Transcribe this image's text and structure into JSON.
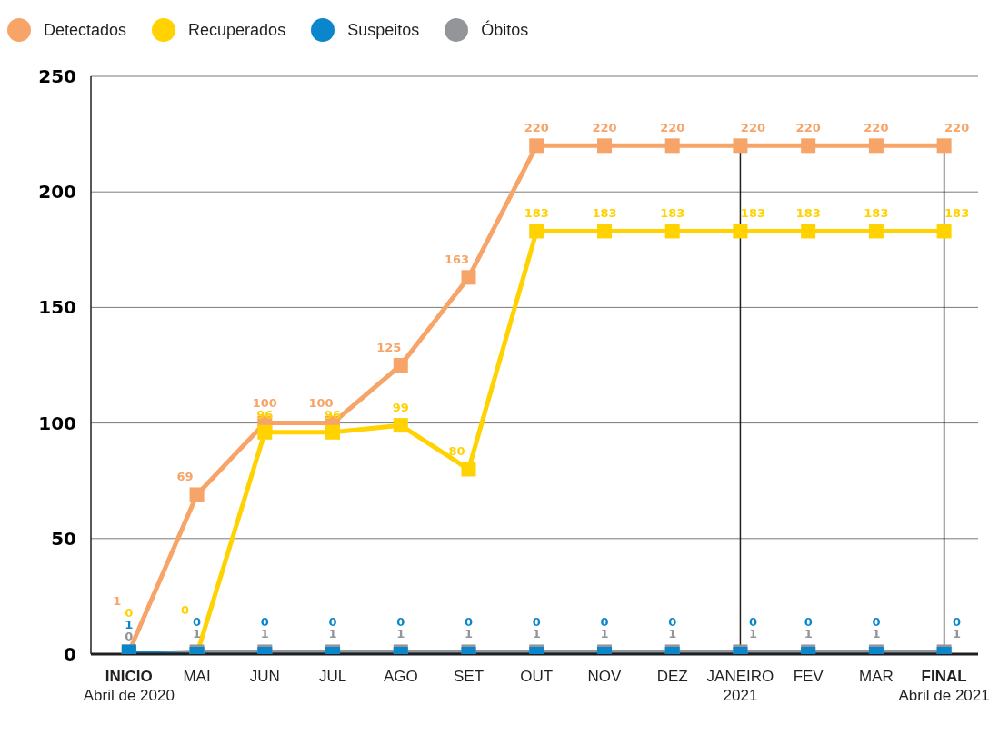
{
  "chart_data": {
    "type": "line",
    "categories": [
      "INICIO\nAbril de 2020",
      "MAI",
      "JUN",
      "JUL",
      "AGO",
      "SET",
      "OUT",
      "NOV",
      "DEZ",
      "JANEIRO\n2021",
      "FEV",
      "MAR",
      "FINAL\nAbril de 2021"
    ],
    "series": [
      {
        "name": "Detectados",
        "color": "#f7a468",
        "values": [
          1,
          69,
          100,
          100,
          125,
          163,
          220,
          220,
          220,
          220,
          220,
          220,
          220
        ]
      },
      {
        "name": "Recuperados",
        "color": "#ffd200",
        "values": [
          0,
          0,
          96,
          96,
          99,
          80,
          183,
          183,
          183,
          183,
          183,
          183,
          183
        ]
      },
      {
        "name": "Suspeitos",
        "color": "#0a86cc",
        "values": [
          1,
          0,
          0,
          0,
          0,
          0,
          0,
          0,
          0,
          0,
          0,
          0,
          0
        ]
      },
      {
        "name": "Óbitos",
        "color": "#939598",
        "values": [
          0,
          1,
          1,
          1,
          1,
          1,
          1,
          1,
          1,
          1,
          1,
          1,
          1
        ]
      }
    ],
    "ylim": [
      0,
      250
    ],
    "yticks": [
      0,
      50,
      100,
      150,
      200,
      250
    ],
    "grid": "y",
    "legend": "top left",
    "marker": "square",
    "line_style": "solid",
    "data_labels": true,
    "ref_lines": [
      {
        "axis": "x",
        "value": "JANEIRO\n2021",
        "color": "#231f20"
      },
      {
        "axis": "x",
        "value": "FINAL\nAbril de 2021",
        "color": "#231f20"
      }
    ]
  }
}
